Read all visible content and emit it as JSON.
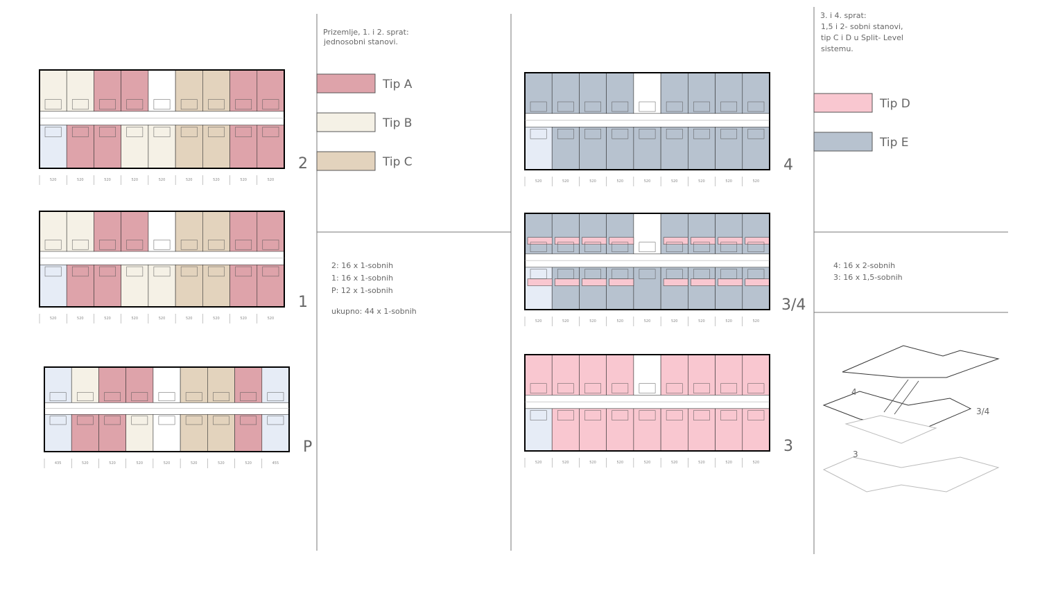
{
  "left_panel": {
    "heading": [
      "Prizemlje, 1. i 2. sprat:",
      "jednosobni stanovi."
    ],
    "legend": [
      {
        "label": "Tip A",
        "color": "#dea3aa"
      },
      {
        "label": "Tip B",
        "color": "#f5f1e6"
      },
      {
        "label": "Tip C",
        "color": "#e3d3bd"
      }
    ],
    "stats": [
      "2: 16 x 1-sobnih",
      "1: 16 x 1-sobnih",
      "P: 12 x 1-sobnih",
      "ukupno: 44 x 1-sobnih"
    ]
  },
  "right_panel": {
    "heading": [
      "3. i 4. sprat:",
      "1,5 i 2- sobni stanovi,",
      "tip C i D u Split- Level",
      "sistemu."
    ],
    "legend": [
      {
        "label": "Tip D",
        "color": "#f9c7d0"
      },
      {
        "label": "Tip E",
        "color": "#b7c2cf"
      }
    ],
    "stats": [
      "4: 16 x 2-sobnih",
      "3: 16 x 1,5-sobnih"
    ],
    "axonometry_labels": [
      "4",
      "3/4",
      "3"
    ]
  },
  "plans": [
    {
      "label": "2",
      "dims": [
        "520",
        "520",
        "520",
        "520",
        "520",
        "520",
        "520",
        "520",
        "520"
      ]
    },
    {
      "label": "1",
      "dims": [
        "520",
        "520",
        "520",
        "520",
        "520",
        "520",
        "520",
        "520",
        "520"
      ]
    },
    {
      "label": "P",
      "dims": [
        "435",
        "520",
        "520",
        "520",
        "520",
        "520",
        "520",
        "520",
        "455"
      ]
    },
    {
      "label": "4",
      "dims": [
        "520",
        "520",
        "520",
        "520",
        "520",
        "520",
        "520",
        "520",
        "520"
      ]
    },
    {
      "label": "3/4",
      "dims": [
        "520",
        "520",
        "520",
        "520",
        "520",
        "520",
        "520",
        "520",
        "520"
      ]
    },
    {
      "label": "3",
      "dims": [
        "520",
        "520",
        "520",
        "520",
        "520",
        "520",
        "520",
        "520",
        "520"
      ]
    }
  ]
}
